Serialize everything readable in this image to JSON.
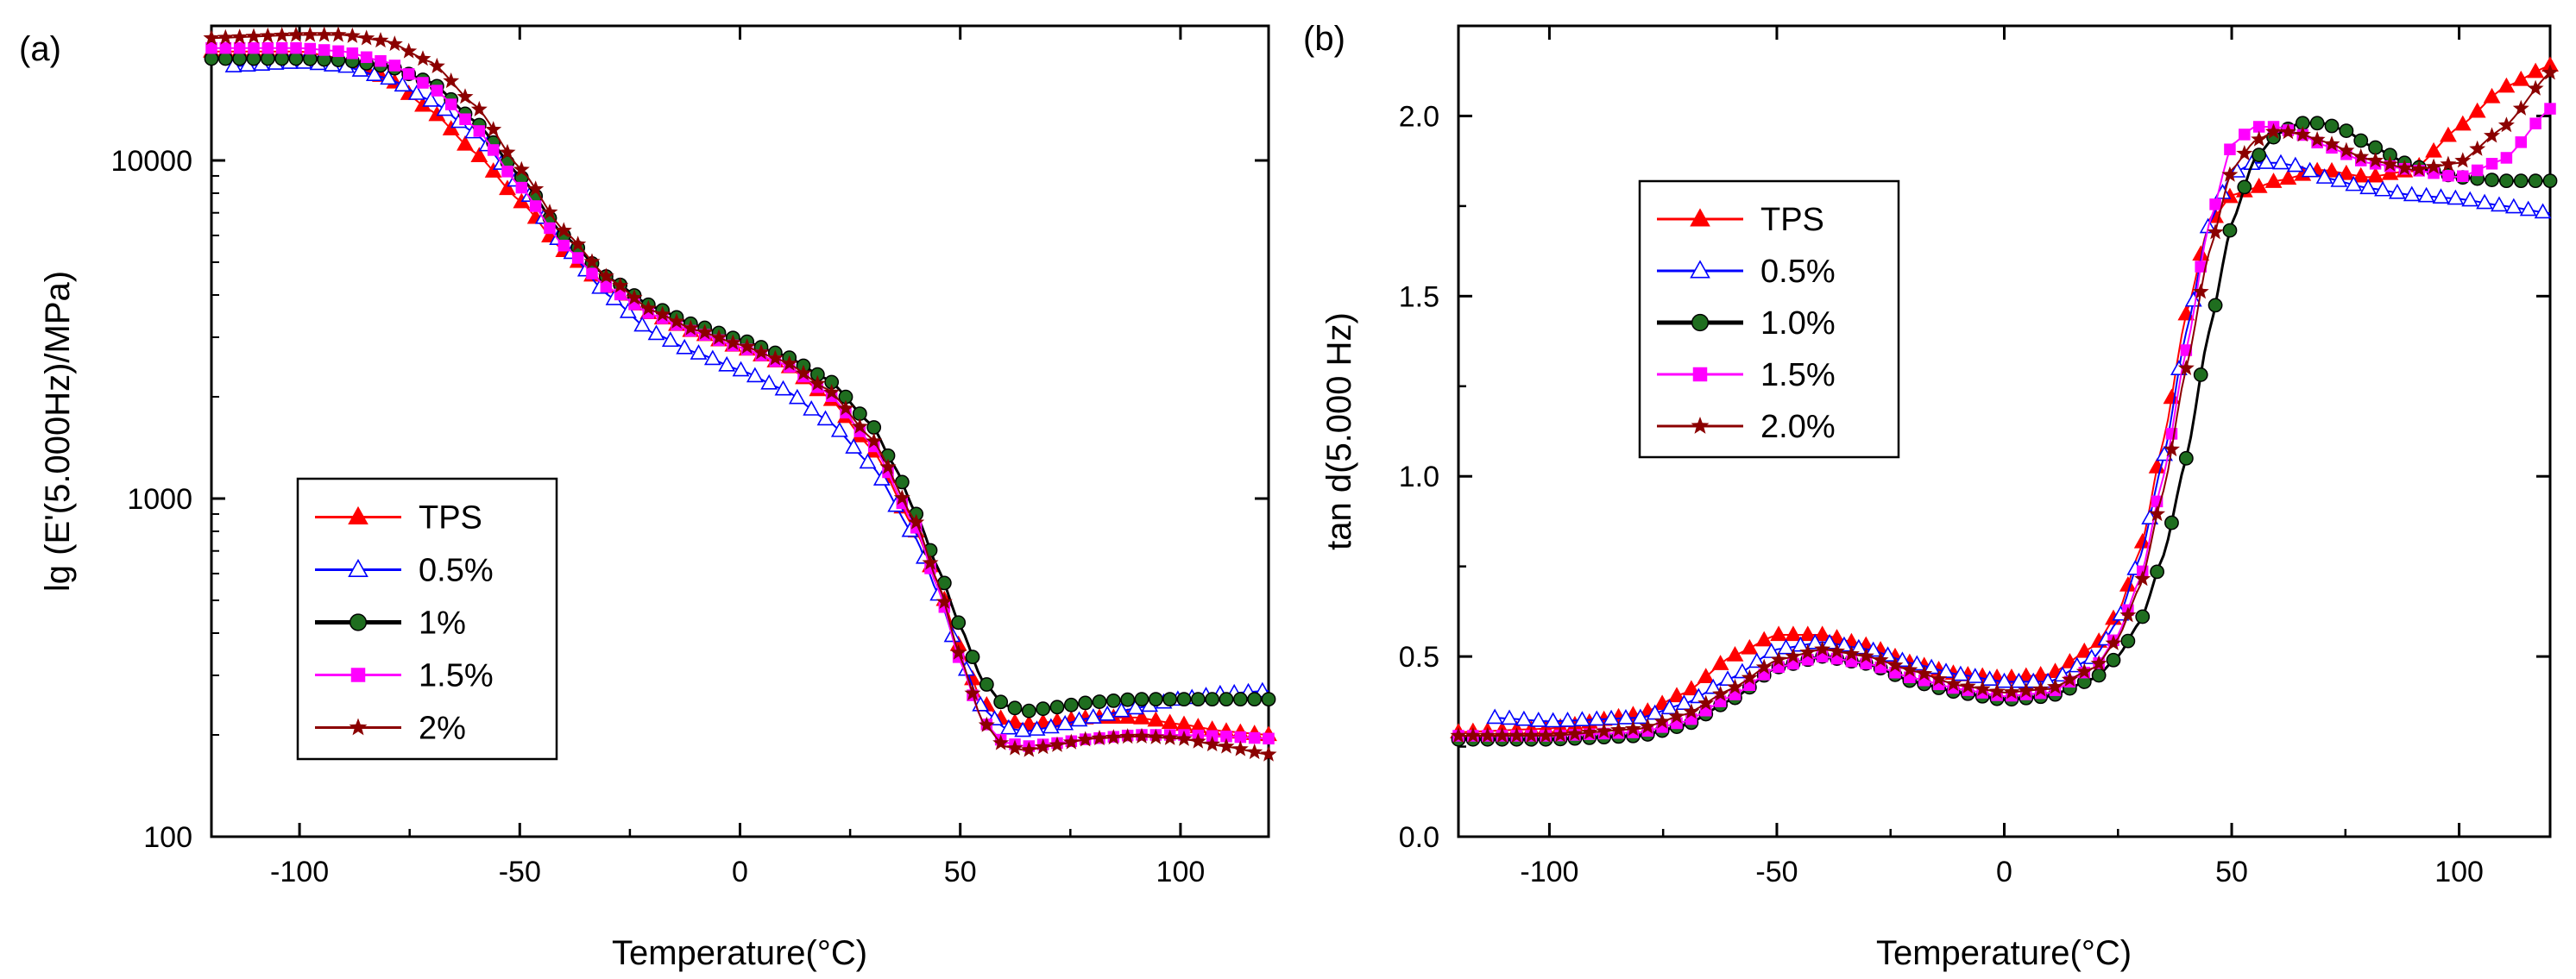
{
  "chart_data": [
    {
      "type": "line",
      "panel_label": "(a)",
      "xlabel": "Temperature(°C)",
      "ylabel": "lg (E'(5.000Hz)/MPa)",
      "yscale": "log",
      "xlim": [
        -120,
        120
      ],
      "ylim": [
        100,
        25000
      ],
      "xticks": [
        -100,
        -50,
        0,
        50,
        100
      ],
      "xtick_labels": [
        "-100",
        "-50",
        "0",
        "50",
        "100"
      ],
      "yticks": [
        100,
        1000,
        10000
      ],
      "ytick_labels": [
        "100",
        "1000",
        "10000"
      ],
      "grid": false,
      "legend_position": "lower-left",
      "series": [
        {
          "name": "TPS",
          "color": "#ff0000",
          "marker": "triangle-filled",
          "x": [
            -120,
            -100,
            -90,
            -80,
            -70,
            -60,
            -50,
            -40,
            -30,
            -20,
            -10,
            0,
            10,
            20,
            30,
            40,
            45,
            50,
            55,
            60,
            65,
            70,
            80,
            90,
            100,
            110,
            120
          ],
          "y": [
            21000,
            21000,
            20000,
            17500,
            14000,
            10500,
            7600,
            5400,
            4200,
            3500,
            3100,
            2800,
            2500,
            2000,
            1400,
            800,
            560,
            360,
            250,
            220,
            215,
            218,
            225,
            225,
            215,
            205,
            200
          ]
        },
        {
          "name": "0.5%",
          "color": "#0000ff",
          "marker": "triangle-open",
          "x": [
            -115,
            -100,
            -90,
            -80,
            -70,
            -60,
            -50,
            -40,
            -30,
            -20,
            -10,
            0,
            10,
            20,
            30,
            40,
            45,
            50,
            55,
            60,
            65,
            70,
            80,
            90,
            100,
            110,
            120
          ],
          "y": [
            19000,
            19500,
            19000,
            17500,
            15000,
            12000,
            8500,
            5600,
            4000,
            3100,
            2700,
            2400,
            2100,
            1700,
            1250,
            760,
            520,
            340,
            240,
            210,
            205,
            210,
            225,
            240,
            255,
            265,
            270
          ]
        },
        {
          "name": "1%",
          "color": "#000000",
          "marker": "circle-filled",
          "marker_fill": "#1f6e1f",
          "x": [
            -120,
            -100,
            -90,
            -80,
            -70,
            -60,
            -50,
            -40,
            -30,
            -20,
            -10,
            0,
            10,
            20,
            30,
            35,
            40,
            45,
            50,
            55,
            60,
            65,
            70,
            80,
            90,
            100,
            110,
            120
          ],
          "y": [
            20000,
            20000,
            19800,
            19000,
            17000,
            13000,
            9000,
            6000,
            4500,
            3700,
            3250,
            2950,
            2650,
            2250,
            1650,
            1250,
            900,
            620,
            420,
            290,
            245,
            235,
            240,
            250,
            255,
            255,
            255,
            255
          ]
        },
        {
          "name": "1.5%",
          "color": "#ff00ff",
          "marker": "square-filled",
          "x": [
            -120,
            -100,
            -90,
            -80,
            -70,
            -60,
            -50,
            -40,
            -30,
            -20,
            -10,
            0,
            10,
            20,
            30,
            40,
            45,
            50,
            55,
            60,
            65,
            70,
            80,
            90,
            100,
            110,
            120
          ],
          "y": [
            21500,
            21500,
            21000,
            19500,
            16500,
            12500,
            8400,
            5600,
            4200,
            3500,
            3100,
            2800,
            2500,
            2050,
            1450,
            820,
            540,
            330,
            220,
            190,
            185,
            188,
            195,
            200,
            200,
            198,
            195
          ]
        },
        {
          "name": "2%",
          "color": "#8b0000",
          "marker": "star-filled",
          "x": [
            -120,
            -100,
            -90,
            -80,
            -70,
            -60,
            -50,
            -40,
            -30,
            -20,
            -10,
            0,
            10,
            20,
            30,
            40,
            45,
            50,
            55,
            60,
            65,
            70,
            80,
            90,
            100,
            110,
            120
          ],
          "y": [
            23000,
            23500,
            23500,
            22500,
            19500,
            14500,
            9500,
            6200,
            4500,
            3600,
            3150,
            2850,
            2550,
            2100,
            1500,
            850,
            560,
            340,
            220,
            185,
            180,
            185,
            195,
            198,
            195,
            185,
            175
          ]
        }
      ]
    },
    {
      "type": "line",
      "panel_label": "(b)",
      "xlabel": "Temperature(°C)",
      "ylabel": "tan d(5.000 Hz)",
      "yscale": "linear",
      "xlim": [
        -120,
        120
      ],
      "ylim": [
        0.0,
        2.25
      ],
      "xticks": [
        -100,
        -50,
        0,
        50,
        100
      ],
      "xtick_labels": [
        "-100",
        "-50",
        "0",
        "50",
        "100"
      ],
      "yticks": [
        0.0,
        0.5,
        1.0,
        1.5,
        2.0
      ],
      "ytick_labels": [
        "0.0",
        "0.5",
        "1.0",
        "1.5",
        "2.0"
      ],
      "grid": false,
      "legend_position": "upper-left",
      "series": [
        {
          "name": "TPS",
          "color": "#ff0000",
          "marker": "triangle-filled",
          "x": [
            -120,
            -100,
            -80,
            -70,
            -60,
            -50,
            -40,
            -30,
            -20,
            -10,
            0,
            10,
            20,
            25,
            30,
            35,
            40,
            45,
            50,
            55,
            60,
            70,
            80,
            90,
            100,
            110,
            120
          ],
          "y": [
            0.29,
            0.3,
            0.34,
            0.4,
            0.5,
            0.56,
            0.56,
            0.53,
            0.48,
            0.45,
            0.44,
            0.45,
            0.53,
            0.62,
            0.8,
            1.1,
            1.45,
            1.7,
            1.78,
            1.8,
            1.82,
            1.85,
            1.83,
            1.85,
            1.97,
            2.08,
            2.14
          ]
        },
        {
          "name": "0.5%",
          "color": "#0000ff",
          "marker": "triangle-open",
          "x": [
            -112,
            -100,
            -80,
            -70,
            -60,
            -50,
            -40,
            -30,
            -20,
            -10,
            0,
            10,
            20,
            25,
            30,
            35,
            40,
            45,
            50,
            55,
            60,
            65,
            70,
            80,
            90,
            100,
            110,
            120
          ],
          "y": [
            0.33,
            0.32,
            0.33,
            0.37,
            0.44,
            0.52,
            0.54,
            0.52,
            0.48,
            0.45,
            0.43,
            0.43,
            0.5,
            0.6,
            0.78,
            1.05,
            1.4,
            1.7,
            1.84,
            1.87,
            1.87,
            1.86,
            1.83,
            1.8,
            1.78,
            1.77,
            1.75,
            1.73
          ]
        },
        {
          "name": "1.0%",
          "color": "#000000",
          "marker": "circle-filled",
          "marker_fill": "#1f6e1f",
          "x": [
            -120,
            -100,
            -80,
            -70,
            -60,
            -50,
            -40,
            -30,
            -20,
            -10,
            0,
            10,
            20,
            25,
            30,
            35,
            40,
            45,
            50,
            55,
            60,
            65,
            70,
            75,
            80,
            90,
            100,
            110,
            120
          ],
          "y": [
            0.27,
            0.27,
            0.28,
            0.31,
            0.38,
            0.47,
            0.5,
            0.48,
            0.43,
            0.4,
            0.38,
            0.39,
            0.44,
            0.5,
            0.6,
            0.78,
            1.05,
            1.4,
            1.7,
            1.88,
            1.95,
            1.98,
            1.98,
            1.96,
            1.92,
            1.86,
            1.83,
            1.82,
            1.82
          ]
        },
        {
          "name": "1.5%",
          "color": "#ff00ff",
          "marker": "square-filled",
          "x": [
            -120,
            -100,
            -80,
            -70,
            -60,
            -50,
            -40,
            -30,
            -20,
            -10,
            0,
            10,
            20,
            25,
            30,
            35,
            40,
            45,
            50,
            55,
            60,
            65,
            70,
            80,
            90,
            100,
            110,
            120
          ],
          "y": [
            0.28,
            0.28,
            0.29,
            0.32,
            0.39,
            0.47,
            0.5,
            0.48,
            0.44,
            0.41,
            0.39,
            0.4,
            0.47,
            0.56,
            0.72,
            1.0,
            1.35,
            1.7,
            1.92,
            1.97,
            1.97,
            1.95,
            1.92,
            1.87,
            1.85,
            1.83,
            1.88,
            2.02
          ]
        },
        {
          "name": "2.0%",
          "color": "#8b0000",
          "marker": "star-filled",
          "x": [
            -120,
            -100,
            -80,
            -70,
            -60,
            -50,
            -40,
            -30,
            -20,
            -10,
            0,
            10,
            20,
            25,
            30,
            35,
            40,
            45,
            50,
            55,
            60,
            65,
            70,
            80,
            90,
            100,
            110,
            120
          ],
          "y": [
            0.28,
            0.28,
            0.3,
            0.34,
            0.41,
            0.49,
            0.52,
            0.5,
            0.46,
            0.42,
            0.4,
            0.41,
            0.47,
            0.55,
            0.7,
            0.96,
            1.3,
            1.62,
            1.85,
            1.93,
            1.96,
            1.95,
            1.93,
            1.88,
            1.85,
            1.87,
            1.97,
            2.12
          ]
        }
      ]
    }
  ]
}
